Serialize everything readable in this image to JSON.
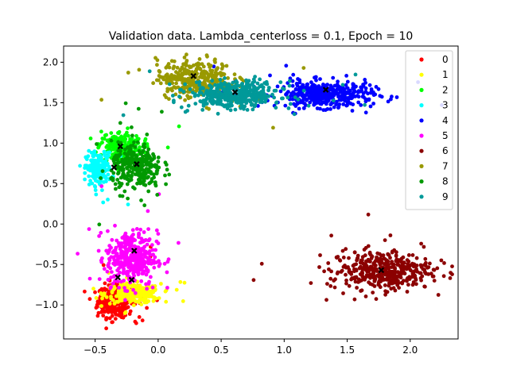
{
  "chart_data": {
    "type": "scatter",
    "title": "Validation data. Lambda_centerloss = 0.1, Epoch = 10",
    "xlabel": "",
    "ylabel": "",
    "xlim": [
      -0.75,
      2.38
    ],
    "ylim": [
      -1.42,
      2.2
    ],
    "xticks": [
      -0.5,
      0.0,
      0.5,
      1.0,
      1.5,
      2.0
    ],
    "xtick_labels": [
      "−0.5",
      "0.0",
      "0.5",
      "1.0",
      "1.5",
      "2.0"
    ],
    "yticks": [
      -1.0,
      -0.5,
      0.0,
      0.5,
      1.0,
      1.5,
      2.0
    ],
    "ytick_labels": [
      "−1.0",
      "−0.5",
      "0.0",
      "0.5",
      "1.0",
      "1.5",
      "2.0"
    ],
    "grid": false,
    "legend_position": "top-right",
    "series": [
      {
        "name": "0",
        "color": "#ff0000",
        "center": [
          -0.34,
          -0.95
        ],
        "spread": [
          0.07,
          0.1
        ],
        "count": 320
      },
      {
        "name": "1",
        "color": "#ffff00",
        "center": [
          -0.2,
          -0.86
        ],
        "spread": [
          0.11,
          0.06
        ],
        "count": 260
      },
      {
        "name": "2",
        "color": "#00ff00",
        "center": [
          -0.3,
          0.95
        ],
        "spread": [
          0.09,
          0.1
        ],
        "count": 220
      },
      {
        "name": "3",
        "color": "#00ffff",
        "center": [
          -0.47,
          0.68
        ],
        "spread": [
          0.05,
          0.1
        ],
        "count": 200
      },
      {
        "name": "4",
        "color": "#0000ff",
        "center": [
          1.33,
          1.6
        ],
        "spread": [
          0.19,
          0.08
        ],
        "count": 400
      },
      {
        "name": "5",
        "color": "#ff00ff",
        "center": [
          -0.21,
          -0.42
        ],
        "spread": [
          0.1,
          0.17
        ],
        "count": 380
      },
      {
        "name": "6",
        "color": "#8b0000",
        "center": [
          1.77,
          -0.57
        ],
        "spread": [
          0.2,
          0.12
        ],
        "count": 420
      },
      {
        "name": "7",
        "color": "#999900",
        "center": [
          0.29,
          1.8
        ],
        "spread": [
          0.15,
          0.12
        ],
        "count": 320
      },
      {
        "name": "8",
        "color": "#009900",
        "center": [
          -0.17,
          0.7
        ],
        "spread": [
          0.1,
          0.15
        ],
        "count": 300
      },
      {
        "name": "9",
        "color": "#009999",
        "center": [
          0.62,
          1.6
        ],
        "spread": [
          0.18,
          0.08
        ],
        "count": 400
      }
    ],
    "centers": [
      {
        "label": "0",
        "x": -0.32,
        "y": -0.66
      },
      {
        "label": "1",
        "x": -0.21,
        "y": -0.69
      },
      {
        "label": "2",
        "x": -0.3,
        "y": 0.96
      },
      {
        "label": "3",
        "x": -0.35,
        "y": 0.7
      },
      {
        "label": "4",
        "x": 1.33,
        "y": 1.66
      },
      {
        "label": "5",
        "x": -0.19,
        "y": -0.33
      },
      {
        "label": "6",
        "x": 1.77,
        "y": -0.57
      },
      {
        "label": "7",
        "x": 0.28,
        "y": 1.83
      },
      {
        "label": "8",
        "x": -0.17,
        "y": 0.74
      },
      {
        "label": "9",
        "x": 0.61,
        "y": 1.63
      }
    ]
  }
}
